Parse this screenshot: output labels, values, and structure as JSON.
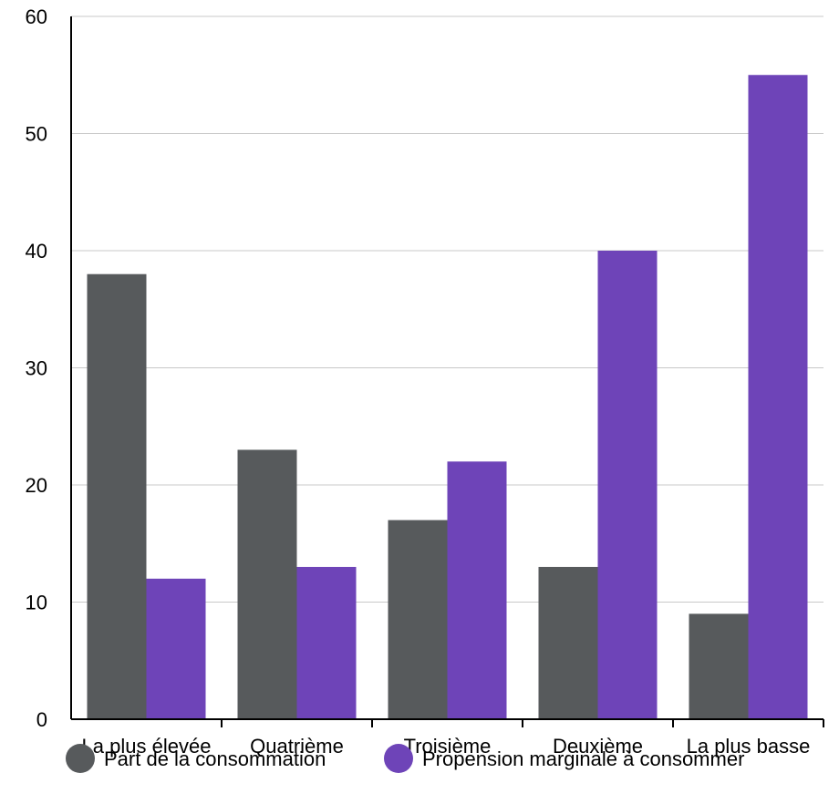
{
  "chart_data": {
    "type": "bar",
    "title": "",
    "xlabel": "",
    "ylabel": "",
    "categories": [
      "La plus élevée",
      "Quatrième",
      "Troisième",
      "Deuxième",
      "La plus basse"
    ],
    "series": [
      {
        "name": "Part de la consommation",
        "color": "#575a5c",
        "values": [
          38,
          23,
          17,
          13,
          9
        ]
      },
      {
        "name": "Propension marginale à consommer",
        "color": "#6e44b8",
        "values": [
          12,
          13,
          22,
          40,
          55
        ]
      }
    ],
    "ylim": [
      0,
      60
    ],
    "yticks": [
      0,
      10,
      20,
      30,
      40,
      50,
      60
    ],
    "grid": true,
    "legend_position": "bottom"
  }
}
